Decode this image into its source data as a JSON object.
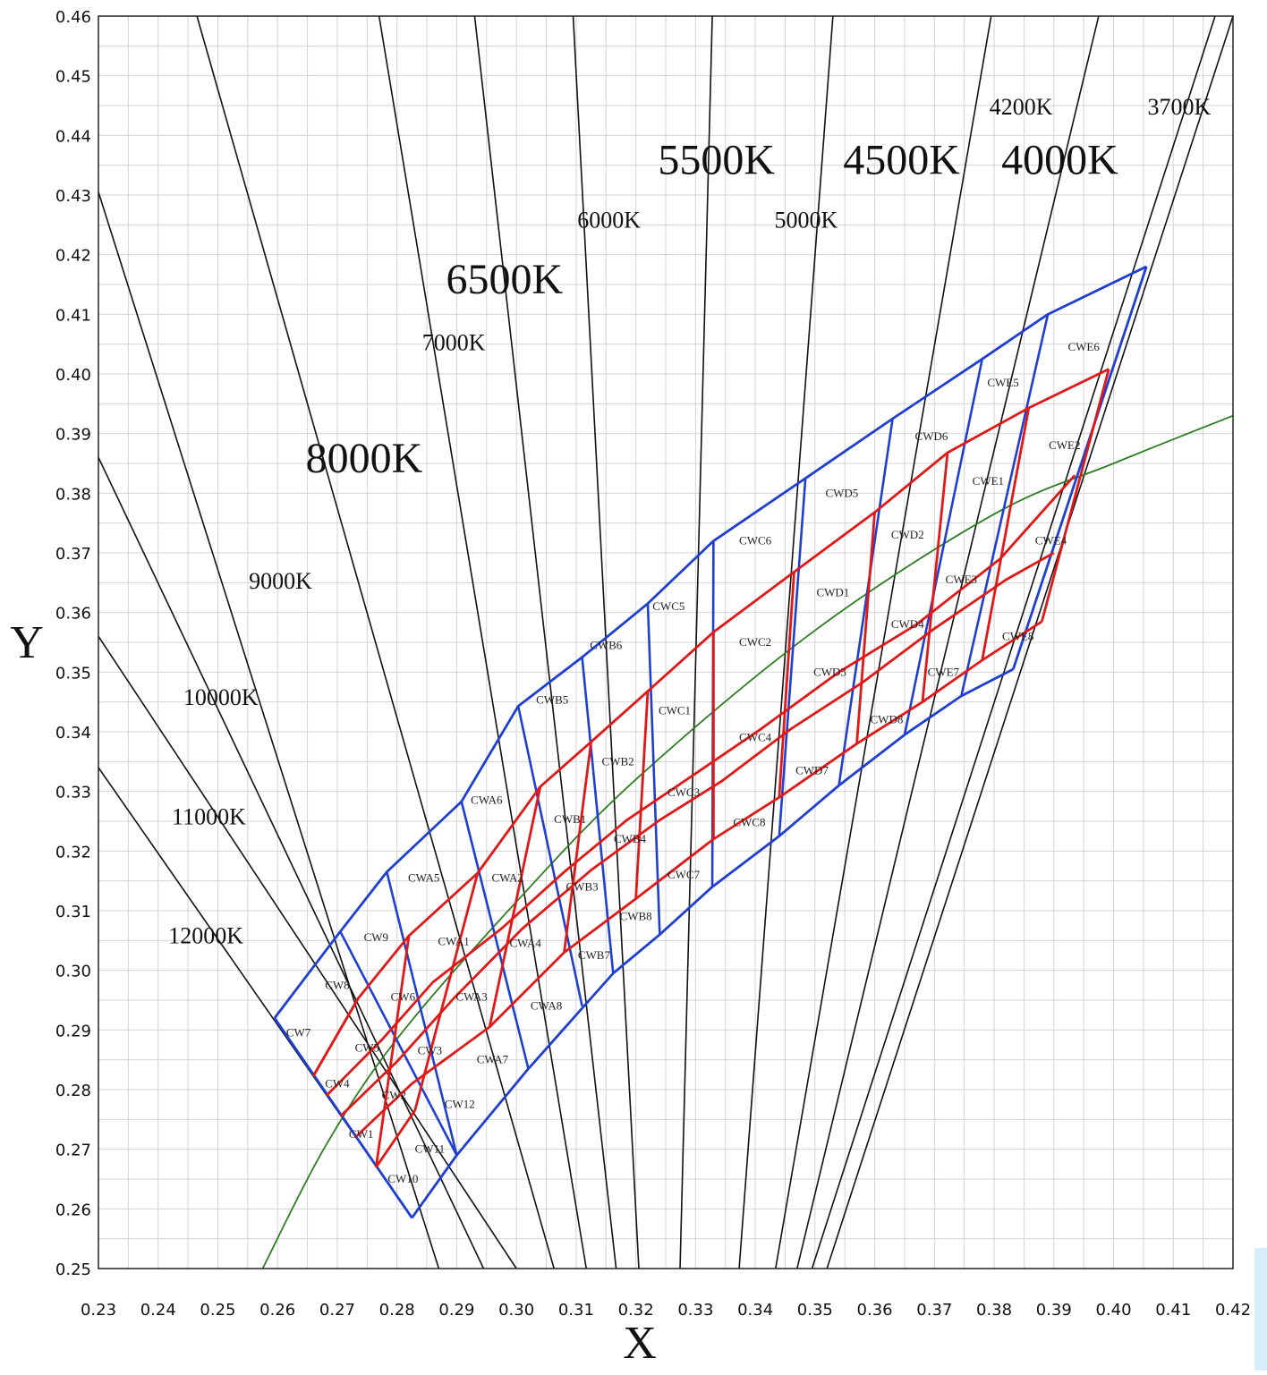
{
  "chart_data": {
    "type": "line",
    "xlabel": "X",
    "ylabel": "Y",
    "xlim": [
      0.23,
      0.42
    ],
    "ylim": [
      0.25,
      0.46
    ],
    "grid": true,
    "x_ticks": [
      "0.23",
      "0.24",
      "0.25",
      "0.26",
      "0.27",
      "0.28",
      "0.29",
      "0.30",
      "0.31",
      "0.32",
      "0.33",
      "0.34",
      "0.35",
      "0.36",
      "0.37",
      "0.38",
      "0.39",
      "0.40",
      "0.41",
      "0.42"
    ],
    "y_ticks": [
      "0.25",
      "0.26",
      "0.27",
      "0.28",
      "0.29",
      "0.30",
      "0.31",
      "0.32",
      "0.33",
      "0.34",
      "0.35",
      "0.36",
      "0.37",
      "0.38",
      "0.39",
      "0.40",
      "0.41",
      "0.42",
      "0.43",
      "0.44",
      "0.45",
      "0.46"
    ],
    "cct_lines": [
      {
        "top": [
          0.23,
          0.4305
        ],
        "bottom": [
          0.287,
          0.25
        ]
      },
      {
        "top": [
          0.23,
          0.386
        ],
        "bottom": [
          0.2945,
          0.25
        ]
      },
      {
        "top": [
          0.23,
          0.356
        ],
        "bottom": [
          0.3,
          0.25
        ]
      },
      {
        "top": [
          0.23,
          0.334
        ],
        "bottom": [
          0.2825,
          0.2585
        ]
      },
      {
        "top": [
          0.2465,
          0.46
        ],
        "bottom": [
          0.3063,
          0.25
        ]
      },
      {
        "top": [
          0.277,
          0.46
        ],
        "bottom": [
          0.3117,
          0.25
        ]
      },
      {
        "top": [
          0.293,
          0.46
        ],
        "bottom": [
          0.3167,
          0.25
        ]
      },
      {
        "top": [
          0.3095,
          0.46
        ],
        "bottom": [
          0.3205,
          0.25
        ]
      },
      {
        "top": [
          0.3328,
          0.46
        ],
        "bottom": [
          0.3274,
          0.25
        ]
      },
      {
        "top": [
          0.353,
          0.46
        ],
        "bottom": [
          0.3373,
          0.25
        ]
      },
      {
        "top": [
          0.3795,
          0.46
        ],
        "bottom": [
          0.3434,
          0.25
        ]
      },
      {
        "top": [
          0.3975,
          0.46
        ],
        "bottom": [
          0.347,
          0.25
        ]
      },
      {
        "top": [
          0.417,
          0.46
        ],
        "bottom": [
          0.3495,
          0.25
        ]
      },
      {
        "top": [
          0.42,
          0.46
        ],
        "bottom": [
          0.352,
          0.25
        ]
      }
    ],
    "cct_labels": [
      {
        "text": "12000K",
        "x": 0.248,
        "y": 0.3045,
        "size": "small"
      },
      {
        "text": "11000K",
        "x": 0.2485,
        "y": 0.3245,
        "size": "small"
      },
      {
        "text": "10000K",
        "x": 0.2505,
        "y": 0.3445,
        "size": "small"
      },
      {
        "text": "9000K",
        "x": 0.2605,
        "y": 0.364,
        "size": "small"
      },
      {
        "text": "8000K",
        "x": 0.2745,
        "y": 0.3835,
        "size": "big"
      },
      {
        "text": "7000K",
        "x": 0.2895,
        "y": 0.404,
        "size": "small"
      },
      {
        "text": "6500K",
        "x": 0.298,
        "y": 0.4135,
        "size": "big"
      },
      {
        "text": "6000K",
        "x": 0.3155,
        "y": 0.4245,
        "size": "small"
      },
      {
        "text": "5500K",
        "x": 0.3335,
        "y": 0.4335,
        "size": "big"
      },
      {
        "text": "5000K",
        "x": 0.3485,
        "y": 0.4245,
        "size": "small"
      },
      {
        "text": "4500K",
        "x": 0.3645,
        "y": 0.4335,
        "size": "big"
      },
      {
        "text": "4200K",
        "x": 0.3845,
        "y": 0.4435,
        "size": "small"
      },
      {
        "text": "4000K",
        "x": 0.391,
        "y": 0.4335,
        "size": "big"
      },
      {
        "text": "3700K",
        "x": 0.411,
        "y": 0.4435,
        "size": "small"
      }
    ],
    "planckian_locus": [
      [
        0.2575,
        0.25
      ],
      [
        0.268,
        0.2705
      ],
      [
        0.28,
        0.2885
      ],
      [
        0.3,
        0.3115
      ],
      [
        0.32,
        0.332
      ],
      [
        0.35,
        0.357
      ],
      [
        0.38,
        0.3765
      ],
      [
        0.4,
        0.385
      ],
      [
        0.42,
        0.393
      ]
    ],
    "blue_outline": [
      [
        [
          0.2595,
          0.292
        ],
        [
          0.2705,
          0.3065
        ],
        [
          0.2783,
          0.3165
        ],
        [
          0.2908,
          0.3283
        ],
        [
          0.3003,
          0.3443
        ],
        [
          0.311,
          0.3525
        ],
        [
          0.322,
          0.3615
        ],
        [
          0.333,
          0.372
        ],
        [
          0.3484,
          0.3825
        ],
        [
          0.363,
          0.3925
        ],
        [
          0.378,
          0.4025
        ],
        [
          0.389,
          0.41
        ],
        [
          0.4055,
          0.418
        ]
      ],
      [
        [
          0.2595,
          0.292
        ],
        [
          0.2825,
          0.2585
        ]
      ],
      [
        [
          0.2825,
          0.2585
        ],
        [
          0.29,
          0.269
        ],
        [
          0.302,
          0.2835
        ],
        [
          0.3162,
          0.2995
        ],
        [
          0.324,
          0.306
        ],
        [
          0.3328,
          0.314
        ],
        [
          0.344,
          0.3225
        ],
        [
          0.354,
          0.331
        ],
        [
          0.365,
          0.3395
        ],
        [
          0.3745,
          0.346
        ],
        [
          0.3832,
          0.3505
        ]
      ],
      [
        [
          0.3832,
          0.3505
        ],
        [
          0.4055,
          0.418
        ]
      ]
    ],
    "blue_dividers": [
      [
        [
          0.2705,
          0.3065
        ],
        [
          0.29,
          0.269
        ]
      ],
      [
        [
          0.2783,
          0.3165
        ],
        [
          0.29,
          0.269
        ]
      ],
      [
        [
          0.2908,
          0.3283
        ],
        [
          0.302,
          0.2835
        ]
      ],
      [
        [
          0.3003,
          0.3443
        ],
        [
          0.311,
          0.294
        ]
      ],
      [
        [
          0.311,
          0.3525
        ],
        [
          0.3162,
          0.2995
        ]
      ],
      [
        [
          0.322,
          0.3615
        ],
        [
          0.324,
          0.306
        ]
      ],
      [
        [
          0.333,
          0.372
        ],
        [
          0.3328,
          0.314
        ]
      ],
      [
        [
          0.3484,
          0.3825
        ],
        [
          0.344,
          0.3225
        ]
      ],
      [
        [
          0.363,
          0.3925
        ],
        [
          0.354,
          0.331
        ]
      ],
      [
        [
          0.378,
          0.4025
        ],
        [
          0.365,
          0.3395
        ]
      ],
      [
        [
          0.389,
          0.41
        ],
        [
          0.3745,
          0.346
        ]
      ]
    ],
    "red_bands": [
      [
        [
          0.266,
          0.2823
        ],
        [
          0.2735,
          0.2953
        ],
        [
          0.282,
          0.3058
        ],
        [
          0.2935,
          0.3163
        ],
        [
          0.304,
          0.3308
        ],
        [
          0.3125,
          0.3383
        ],
        [
          0.322,
          0.3468
        ],
        [
          0.333,
          0.3567
        ],
        [
          0.3465,
          0.3668
        ],
        [
          0.36,
          0.3768
        ],
        [
          0.3722,
          0.3868
        ],
        [
          0.3858,
          0.3943
        ],
        [
          0.3992,
          0.4008
        ]
      ],
      [
        [
          0.2682,
          0.279
        ],
        [
          0.2776,
          0.2885
        ],
        [
          0.286,
          0.298
        ],
        [
          0.2975,
          0.307
        ],
        [
          0.308,
          0.3165
        ],
        [
          0.3185,
          0.3252
        ],
        [
          0.33,
          0.333
        ],
        [
          0.341,
          0.3405
        ],
        [
          0.354,
          0.35
        ],
        [
          0.367,
          0.358
        ],
        [
          0.381,
          0.369
        ],
        [
          0.3935,
          0.383
        ]
      ],
      [
        [
          0.2705,
          0.2755
        ],
        [
          0.28,
          0.2847
        ],
        [
          0.2895,
          0.2953
        ],
        [
          0.301,
          0.307
        ],
        [
          0.3125,
          0.3168
        ],
        [
          0.324,
          0.3252
        ],
        [
          0.3345,
          0.3318
        ],
        [
          0.346,
          0.3405
        ],
        [
          0.358,
          0.3483
        ],
        [
          0.37,
          0.3573
        ],
        [
          0.382,
          0.3655
        ],
        [
          0.39,
          0.37
        ]
      ],
      [
        [
          0.273,
          0.272
        ],
        [
          0.2825,
          0.281
        ],
        [
          0.2955,
          0.2905
        ],
        [
          0.308,
          0.303
        ],
        [
          0.32,
          0.312
        ],
        [
          0.333,
          0.322
        ],
        [
          0.344,
          0.329
        ],
        [
          0.357,
          0.338
        ],
        [
          0.368,
          0.345
        ],
        [
          0.378,
          0.352
        ],
        [
          0.388,
          0.3585
        ]
      ],
      [
        [
          0.2765,
          0.267
        ],
        [
          0.283,
          0.2765
        ]
      ]
    ],
    "red_dividers": [
      [
        [
          0.2735,
          0.2953
        ],
        [
          0.266,
          0.2823
        ]
      ],
      [
        [
          0.282,
          0.3058
        ],
        [
          0.2765,
          0.267
        ]
      ],
      [
        [
          0.2935,
          0.3163
        ],
        [
          0.283,
          0.2765
        ]
      ],
      [
        [
          0.304,
          0.3308
        ],
        [
          0.2955,
          0.2905
        ]
      ],
      [
        [
          0.3125,
          0.3383
        ],
        [
          0.308,
          0.303
        ]
      ],
      [
        [
          0.322,
          0.3468
        ],
        [
          0.32,
          0.312
        ]
      ],
      [
        [
          0.333,
          0.3567
        ],
        [
          0.333,
          0.322
        ]
      ],
      [
        [
          0.3465,
          0.3668
        ],
        [
          0.344,
          0.329
        ]
      ],
      [
        [
          0.36,
          0.3768
        ],
        [
          0.357,
          0.338
        ]
      ],
      [
        [
          0.3722,
          0.3868
        ],
        [
          0.368,
          0.345
        ]
      ],
      [
        [
          0.3858,
          0.3943
        ],
        [
          0.378,
          0.352
        ]
      ],
      [
        [
          0.3992,
          0.4008
        ],
        [
          0.388,
          0.3585
        ]
      ]
    ],
    "bin_labels": [
      {
        "text": "CW7",
        "x": 0.2635,
        "y": 0.2895
      },
      {
        "text": "CW8",
        "x": 0.27,
        "y": 0.2975
      },
      {
        "text": "CW9",
        "x": 0.2765,
        "y": 0.3055
      },
      {
        "text": "CW4",
        "x": 0.27,
        "y": 0.281
      },
      {
        "text": "CW5",
        "x": 0.275,
        "y": 0.287
      },
      {
        "text": "CW6",
        "x": 0.281,
        "y": 0.2955
      },
      {
        "text": "CW1",
        "x": 0.274,
        "y": 0.2725
      },
      {
        "text": "CW2",
        "x": 0.2795,
        "y": 0.279
      },
      {
        "text": "CW3",
        "x": 0.2855,
        "y": 0.2865
      },
      {
        "text": "CW10",
        "x": 0.281,
        "y": 0.265
      },
      {
        "text": "CW11",
        "x": 0.2855,
        "y": 0.27
      },
      {
        "text": "CW12",
        "x": 0.2905,
        "y": 0.2775
      },
      {
        "text": "CWA5",
        "x": 0.2845,
        "y": 0.3155
      },
      {
        "text": "CWA6",
        "x": 0.295,
        "y": 0.3285
      },
      {
        "text": "CWA1",
        "x": 0.2895,
        "y": 0.3048
      },
      {
        "text": "CWA2",
        "x": 0.2985,
        "y": 0.3155
      },
      {
        "text": "CWA3",
        "x": 0.2925,
        "y": 0.2955
      },
      {
        "text": "CWA4",
        "x": 0.3015,
        "y": 0.3045
      },
      {
        "text": "CWA7",
        "x": 0.296,
        "y": 0.285
      },
      {
        "text": "CWA8",
        "x": 0.305,
        "y": 0.294
      },
      {
        "text": "CWB5",
        "x": 0.306,
        "y": 0.3453
      },
      {
        "text": "CWB6",
        "x": 0.315,
        "y": 0.3545
      },
      {
        "text": "CWB1",
        "x": 0.309,
        "y": 0.3253
      },
      {
        "text": "CWB2",
        "x": 0.317,
        "y": 0.335
      },
      {
        "text": "CWB3",
        "x": 0.311,
        "y": 0.314
      },
      {
        "text": "CWB4",
        "x": 0.319,
        "y": 0.322
      },
      {
        "text": "CWB7",
        "x": 0.313,
        "y": 0.3025
      },
      {
        "text": "CWB8",
        "x": 0.32,
        "y": 0.309
      },
      {
        "text": "CWC5",
        "x": 0.3255,
        "y": 0.361
      },
      {
        "text": "CWC6",
        "x": 0.34,
        "y": 0.372
      },
      {
        "text": "CWC1",
        "x": 0.3265,
        "y": 0.3435
      },
      {
        "text": "CWC2",
        "x": 0.34,
        "y": 0.355
      },
      {
        "text": "CWC3",
        "x": 0.328,
        "y": 0.3298
      },
      {
        "text": "CWC4",
        "x": 0.34,
        "y": 0.339
      },
      {
        "text": "CWC7",
        "x": 0.328,
        "y": 0.316
      },
      {
        "text": "CWC8",
        "x": 0.339,
        "y": 0.3248
      },
      {
        "text": "CWD5",
        "x": 0.3545,
        "y": 0.38
      },
      {
        "text": "CWD6",
        "x": 0.3695,
        "y": 0.3895
      },
      {
        "text": "CWD1",
        "x": 0.353,
        "y": 0.3633
      },
      {
        "text": "CWD2",
        "x": 0.3655,
        "y": 0.373
      },
      {
        "text": "CWD3",
        "x": 0.3525,
        "y": 0.35
      },
      {
        "text": "CWD4",
        "x": 0.3655,
        "y": 0.358
      },
      {
        "text": "CWD7",
        "x": 0.3495,
        "y": 0.3335
      },
      {
        "text": "CWD8",
        "x": 0.362,
        "y": 0.342
      },
      {
        "text": "CWE5",
        "x": 0.3815,
        "y": 0.3985
      },
      {
        "text": "CWE6",
        "x": 0.395,
        "y": 0.4045
      },
      {
        "text": "CWE1",
        "x": 0.379,
        "y": 0.382
      },
      {
        "text": "CWE2",
        "x": 0.3918,
        "y": 0.388
      },
      {
        "text": "CWE3",
        "x": 0.3745,
        "y": 0.3655
      },
      {
        "text": "CWE4",
        "x": 0.3895,
        "y": 0.372
      },
      {
        "text": "CWE7",
        "x": 0.3715,
        "y": 0.35
      },
      {
        "text": "CWE8",
        "x": 0.384,
        "y": 0.356
      }
    ],
    "colors": {
      "bin_outline": "#1f3fd0",
      "bin_core": "#e01818",
      "locus": "#2e7d22",
      "cct": "#111111",
      "grid": "#d4d4d4"
    }
  }
}
